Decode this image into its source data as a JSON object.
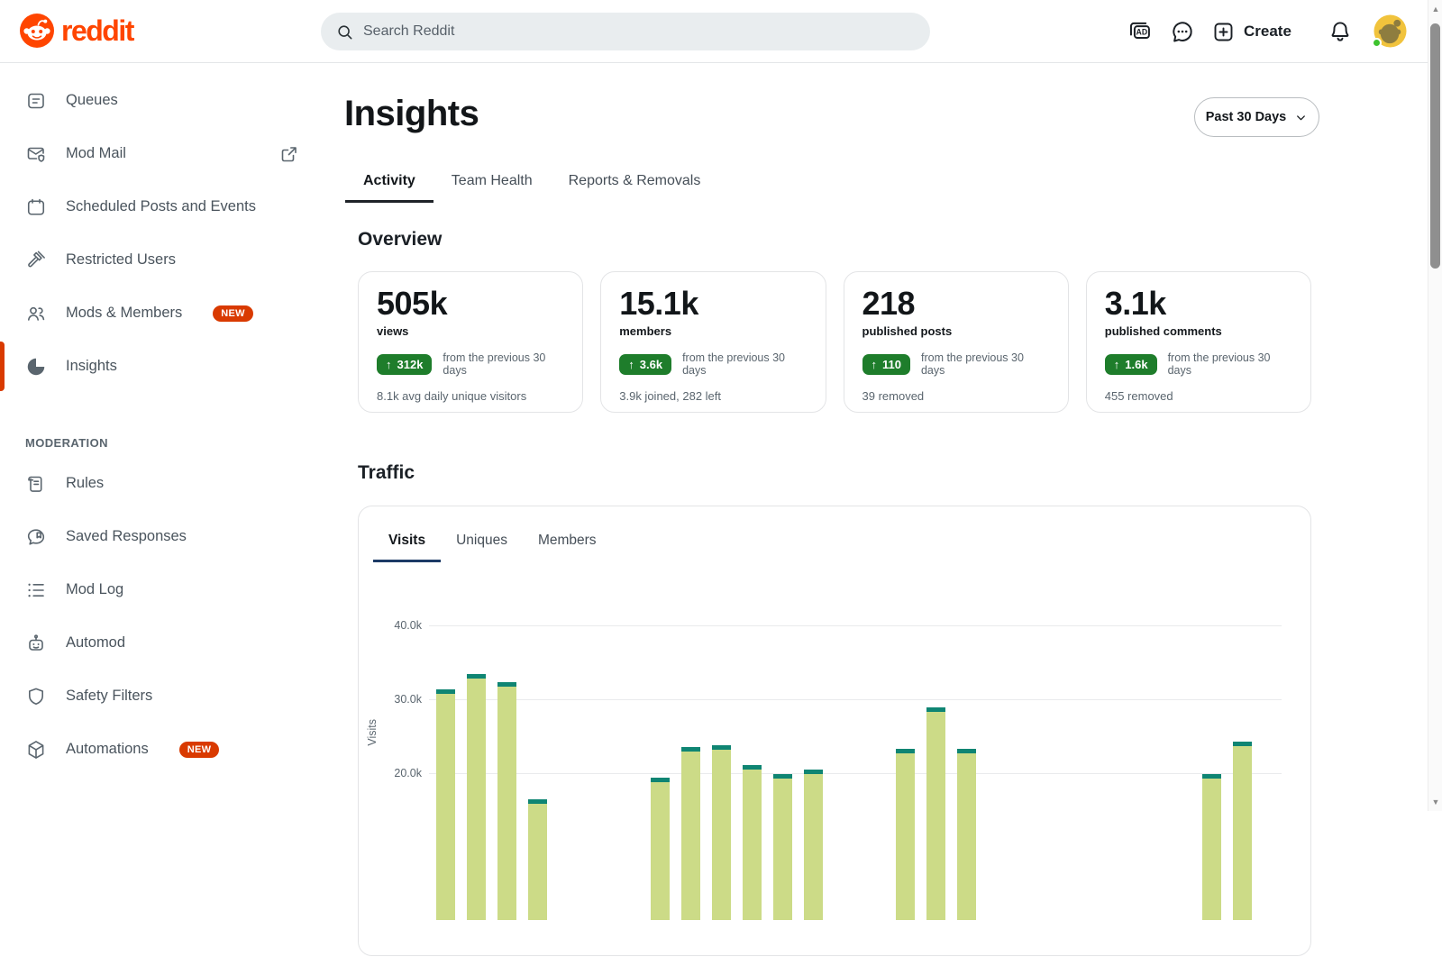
{
  "brand": {
    "logo_text": "reddit"
  },
  "header": {
    "search_placeholder": "Search Reddit",
    "create_label": "Create",
    "icons": [
      "advertise-icon",
      "chat-icon",
      "create-plus-icon",
      "bell-icon",
      "avatar"
    ]
  },
  "sidebar": {
    "items": [
      {
        "label": "Queues",
        "icon": "queues"
      },
      {
        "label": "Mod Mail",
        "icon": "modmail",
        "external": true
      },
      {
        "label": "Scheduled Posts and Events",
        "icon": "calendar"
      },
      {
        "label": "Restricted Users",
        "icon": "gavel"
      },
      {
        "label": "Mods & Members",
        "icon": "members",
        "badge": "NEW"
      },
      {
        "label": "Insights",
        "icon": "insights",
        "selected": true
      }
    ],
    "section_label": "MODERATION",
    "moderation_items": [
      {
        "label": "Rules",
        "icon": "rules"
      },
      {
        "label": "Saved Responses",
        "icon": "saved"
      },
      {
        "label": "Mod Log",
        "icon": "modlog"
      },
      {
        "label": "Automod",
        "icon": "automod"
      },
      {
        "label": "Safety Filters",
        "icon": "shield"
      },
      {
        "label": "Automations",
        "icon": "automations",
        "badge": "NEW"
      }
    ]
  },
  "main": {
    "title": "Insights",
    "date_filter": "Past 30 Days",
    "tabs": [
      {
        "label": "Activity",
        "active": true
      },
      {
        "label": "Team Health",
        "active": false
      },
      {
        "label": "Reports & Removals",
        "active": false
      }
    ],
    "overview": {
      "heading": "Overview",
      "cards": [
        {
          "value": "505k",
          "label": "views",
          "delta": "312k",
          "direction": "up",
          "delta_suffix": "from the previous 30 days",
          "footer": "8.1k avg daily unique visitors"
        },
        {
          "value": "15.1k",
          "label": "members",
          "delta": "3.6k",
          "direction": "up",
          "delta_suffix": "from the previous 30 days",
          "footer": "3.9k joined, 282 left"
        },
        {
          "value": "218",
          "label": "published posts",
          "delta": "110",
          "direction": "up",
          "delta_suffix": "from the previous 30 days",
          "footer": "39 removed"
        },
        {
          "value": "3.1k",
          "label": "published comments",
          "delta": "1.6k",
          "direction": "up",
          "delta_suffix": "from the previous 30 days",
          "footer": "455 removed"
        }
      ]
    },
    "traffic": {
      "heading": "Traffic",
      "tabs": [
        {
          "label": "Visits",
          "active": true
        },
        {
          "label": "Uniques",
          "active": false
        },
        {
          "label": "Members",
          "active": false
        }
      ]
    }
  },
  "chart_data": {
    "type": "bar",
    "title": "Traffic",
    "series_name": "Visits",
    "ylabel": "Visits",
    "x_unit": "day",
    "yticks": [
      {
        "label": "40.0k",
        "value": 40
      },
      {
        "label": "30.0k",
        "value": 30
      },
      {
        "label": "20.0k",
        "value": 20
      }
    ],
    "values_k": [
      31.3,
      33.4,
      32.3,
      16.4,
      null,
      null,
      null,
      19.3,
      23.5,
      23.7,
      21.0,
      19.8,
      20.4,
      null,
      null,
      23.2,
      28.9,
      23.2,
      null,
      null,
      null,
      null,
      null,
      null,
      null,
      19.8,
      24.2,
      null
    ],
    "grid": true,
    "bar_color": "#ccdb87",
    "cap_color": "#0f8573"
  },
  "colors": {
    "logo_orange": "#ff4500",
    "accent_orange": "#d93a00",
    "badge_green": "#1e7d2b",
    "tab_underline_dark": "#1f2328",
    "tab_underline_navy": "#1c3a66"
  }
}
